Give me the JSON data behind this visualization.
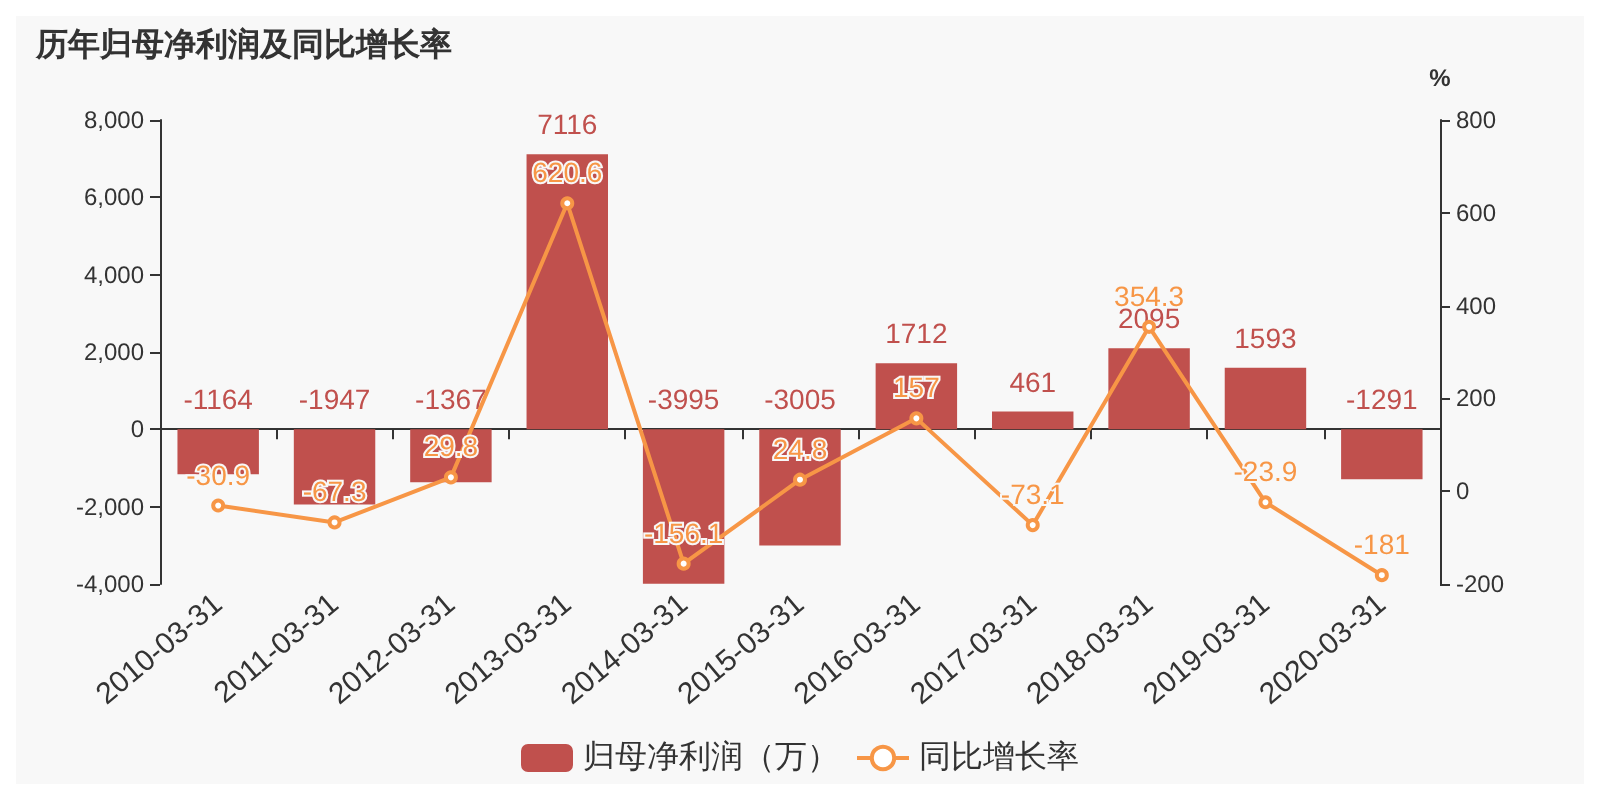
{
  "chart_data": {
    "type": "bar",
    "title": "历年归母净利润及同比增长率",
    "y2label": "%",
    "categories": [
      "2010-03-31",
      "2011-03-31",
      "2012-03-31",
      "2013-03-31",
      "2014-03-31",
      "2015-03-31",
      "2016-03-31",
      "2017-03-31",
      "2018-03-31",
      "2019-03-31",
      "2020-03-31"
    ],
    "series": [
      {
        "name": "归母净利润（万）",
        "color": "#c0504d",
        "values": [
          -1164,
          -1947,
          -1367,
          7116,
          -3995,
          -3005,
          1712,
          461,
          2095,
          1593,
          -1291
        ]
      },
      {
        "name": "同比增长率",
        "type": "line",
        "axis": "y2",
        "color": "#f79646",
        "values": [
          -30.9,
          -67.3,
          29.8,
          620.6,
          -156.1,
          24.8,
          157,
          -73.1,
          354.3,
          -23.9,
          -181
        ]
      }
    ],
    "ylim": [
      -4000,
      8000
    ],
    "yticks": [
      {
        "value": -4000,
        "label": "-4,000"
      },
      {
        "value": -2000,
        "label": "-2,000"
      },
      0,
      {
        "value": 2000,
        "label": "2,000"
      },
      {
        "value": 4000,
        "label": "4,000"
      },
      {
        "value": 6000,
        "label": "6,000"
      },
      {
        "value": 8000,
        "label": "8,000"
      }
    ],
    "y2lim": [
      -200,
      800
    ],
    "y2ticks": [
      -200,
      0,
      200,
      400,
      600,
      800
    ],
    "data_labels": true,
    "legend": "bottom",
    "marker": "circle",
    "line_style": "solid"
  }
}
